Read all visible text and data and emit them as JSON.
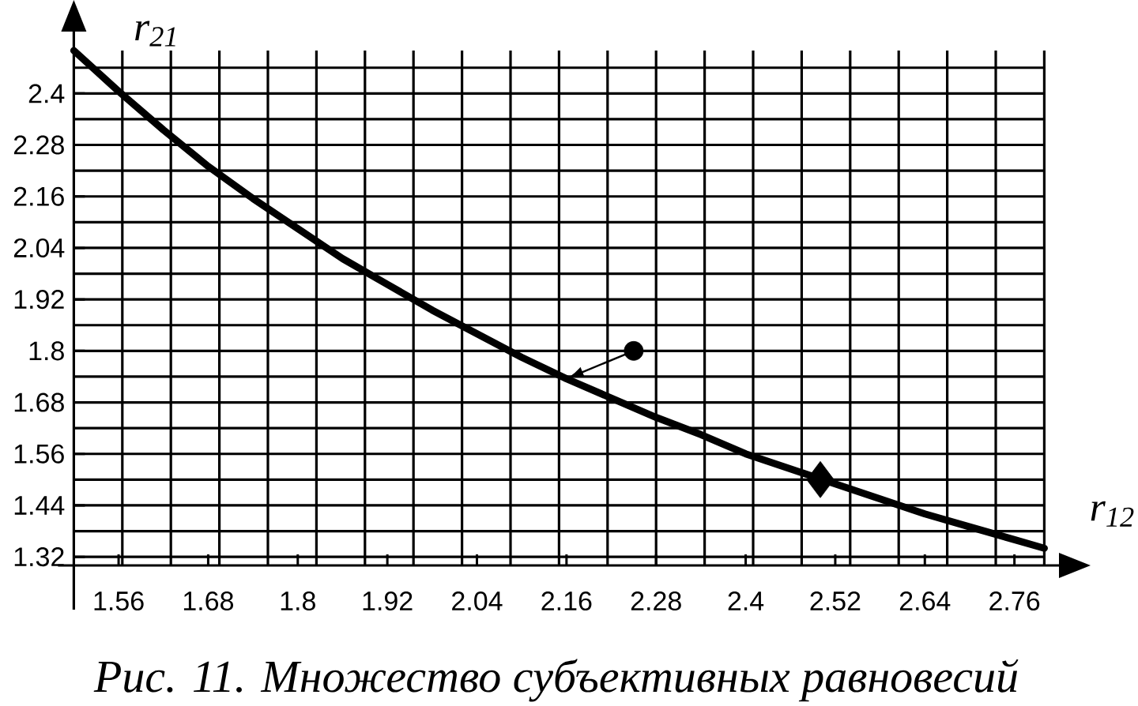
{
  "chart_data": {
    "type": "line",
    "xlabel": "r$_{12}$",
    "ylabel": "r$_{21}$",
    "annotations": [
      "Рис. 11. Множество субъективных равновесий"
    ],
    "xlim": [
      1.5,
      2.8
    ],
    "ylim": [
      1.3,
      2.5
    ],
    "xticks": [
      1.56,
      {
        "value": 1.565,
        "label": null
      },
      {
        "value": 1.63,
        "label": null
      },
      1.68,
      {
        "value": 1.695,
        "label": null
      },
      {
        "value": 1.76,
        "label": null
      },
      1.8,
      {
        "value": 1.825,
        "label": null
      },
      {
        "value": 1.89,
        "label": null
      },
      1.92,
      {
        "value": 1.955,
        "label": null
      },
      {
        "value": 2.02,
        "label": null
      },
      2.04,
      {
        "value": 2.085,
        "label": null
      },
      {
        "value": 2.15,
        "label": null
      },
      2.16,
      {
        "value": 2.215,
        "label": null
      },
      2.28,
      {
        "value": 2.28,
        "label": null
      },
      {
        "value": 2.345,
        "label": null
      },
      2.4,
      {
        "value": 2.41,
        "label": null
      },
      {
        "value": 2.475,
        "label": null
      },
      2.52,
      {
        "value": 2.54,
        "label": null
      },
      {
        "value": 2.605,
        "label": null
      },
      2.64,
      {
        "value": 2.67,
        "label": null
      },
      {
        "value": 2.735,
        "label": null
      },
      2.76,
      {
        "value": 2.8,
        "label": null
      }
    ],
    "yticks": [
      1.32,
      {
        "value": 1.38,
        "label": null
      },
      1.44,
      {
        "value": 1.5,
        "label": null
      },
      1.56,
      {
        "value": 1.62,
        "label": null
      },
      1.68,
      {
        "value": 1.74,
        "label": null
      },
      1.8,
      {
        "value": 1.86,
        "label": null
      },
      1.92,
      {
        "value": 1.98,
        "label": null
      },
      2.04,
      {
        "value": 2.1,
        "label": null
      },
      2.16,
      {
        "value": 2.22,
        "label": null
      },
      2.28,
      {
        "value": 2.34,
        "label": null
      },
      2.4,
      {
        "value": 2.46,
        "label": null
      }
    ],
    "grid": true,
    "series": [
      {
        "type": "line",
        "color": "#000000",
        "x": [
          1.5,
          1.56,
          1.62,
          1.68,
          1.74,
          1.8,
          1.86,
          1.92,
          1.98,
          2.04,
          2.1,
          2.16,
          2.22,
          2.28,
          2.34,
          2.4,
          2.46,
          2.52,
          2.58,
          2.64,
          2.7,
          2.76,
          2.8
        ],
        "values": [
          2.5,
          2.405,
          2.315,
          2.23,
          2.155,
          2.085,
          2.015,
          1.955,
          1.895,
          1.84,
          1.785,
          1.735,
          1.69,
          1.645,
          1.605,
          1.56,
          1.525,
          1.49,
          1.455,
          1.42,
          1.39,
          1.36,
          1.34
        ]
      },
      {
        "type": "scatter",
        "color": "#000000",
        "marker": "circle",
        "x": [
          2.25
        ],
        "values": [
          1.8
        ]
      },
      {
        "type": "scatter",
        "color": "#000000",
        "marker": "diamond",
        "x": [
          2.5
        ],
        "values": [
          1.5
        ]
      }
    ]
  }
}
